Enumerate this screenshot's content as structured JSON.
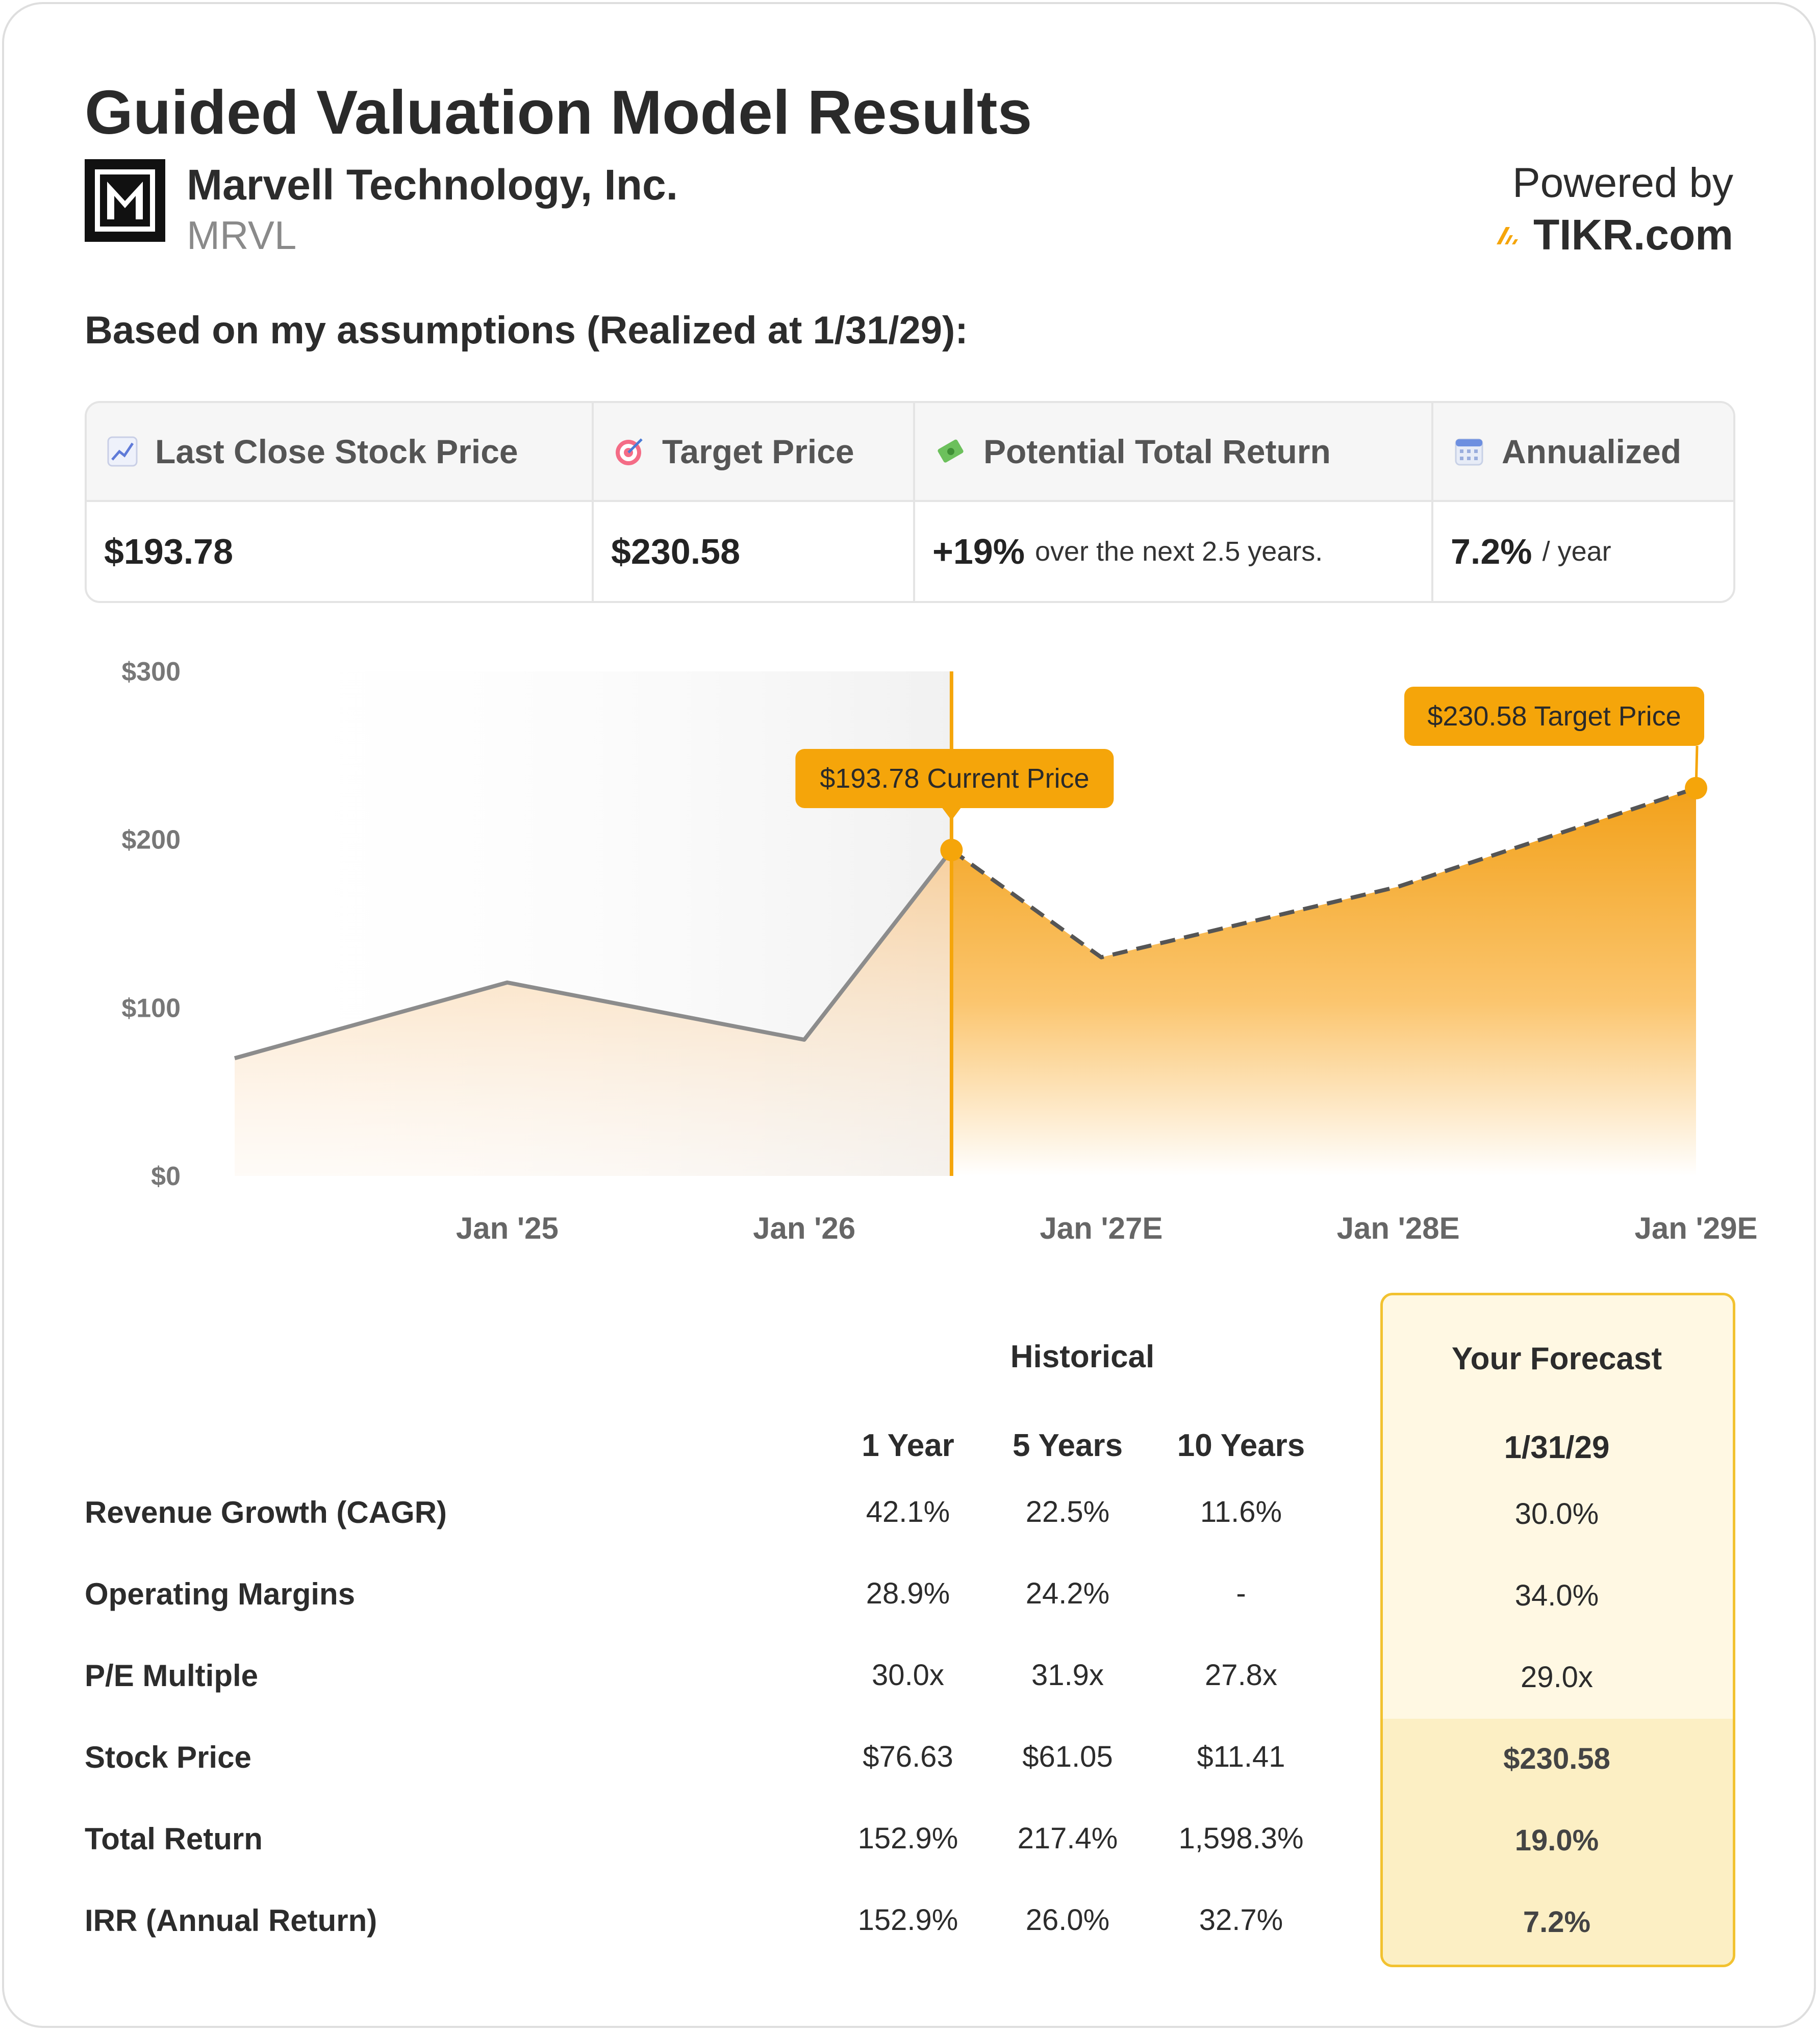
{
  "header": {
    "title": "Guided Valuation Model Results",
    "company": "Marvell Technology, Inc.",
    "ticker": "MRVL",
    "powered_by": "Powered by",
    "brand": "TIKR.com",
    "assumptions": "Based on my assumptions (Realized at 1/31/29):"
  },
  "stats": {
    "last_close_label": "Last Close Stock Price",
    "last_close_value": "$193.78",
    "target_label": "Target Price",
    "target_value": "$230.58",
    "return_label": "Potential Total Return",
    "return_value": "+19%",
    "return_note": "over the next 2.5 years.",
    "annualized_label": "Annualized",
    "annualized_value": "7.2%",
    "annualized_note": "/ year",
    "icons": [
      "chart-increasing-icon",
      "target-icon",
      "money-wings-icon",
      "calendar-icon"
    ]
  },
  "chart_data": {
    "type": "area",
    "x": [
      "2024-02",
      "2025-01",
      "2026-01",
      "2026-07",
      "2027-01",
      "2028-01",
      "2029-01"
    ],
    "historical": [
      {
        "x": "2024-02",
        "y": 70
      },
      {
        "x": "2025-01",
        "y": 115
      },
      {
        "x": "2026-01",
        "y": 81
      },
      {
        "x": "2026-07",
        "y": 193.78
      }
    ],
    "forecast": [
      {
        "x": "2026-07",
        "y": 193.78
      },
      {
        "x": "2027-01",
        "y": 130
      },
      {
        "x": "2028-01",
        "y": 172
      },
      {
        "x": "2029-01",
        "y": 230.58
      }
    ],
    "y_ticks": [
      "$300",
      "$200",
      "$100",
      "$0"
    ],
    "y_tick_values": [
      300,
      200,
      100,
      0
    ],
    "x_ticks": [
      "Jan '25",
      "Jan '26",
      "Jan '27E",
      "Jan '28E",
      "Jan '29E"
    ],
    "ylim": [
      0,
      300
    ],
    "annotations": {
      "current": "$193.78 Current Price",
      "target": "$230.58 Target Price"
    },
    "colors": {
      "accent": "#f5a50a",
      "historical_line": "#8c8c8c",
      "forecast_line": "#555555"
    }
  },
  "table": {
    "historical_header": "Historical",
    "forecast_header": "Your Forecast",
    "columns": [
      "1 Year",
      "5 Years",
      "10 Years"
    ],
    "forecast_date": "1/31/29",
    "rows": [
      {
        "label": "Revenue Growth (CAGR)",
        "values": [
          "42.1%",
          "22.5%",
          "11.6%"
        ],
        "forecast": "30.0%"
      },
      {
        "label": "Operating Margins",
        "values": [
          "28.9%",
          "24.2%",
          "-"
        ],
        "forecast": "34.0%"
      },
      {
        "label": "P/E Multiple",
        "values": [
          "30.0x",
          "31.9x",
          "27.8x"
        ],
        "forecast": "29.0x"
      },
      {
        "label": "Stock Price",
        "values": [
          "$76.63",
          "$61.05",
          "$11.41"
        ],
        "forecast": "$230.58"
      },
      {
        "label": "Total Return",
        "values": [
          "152.9%",
          "217.4%",
          "1,598.3%"
        ],
        "forecast": "19.0%"
      },
      {
        "label": "IRR (Annual Return)",
        "values": [
          "152.9%",
          "26.0%",
          "32.7%"
        ],
        "forecast": "7.2%"
      }
    ]
  }
}
